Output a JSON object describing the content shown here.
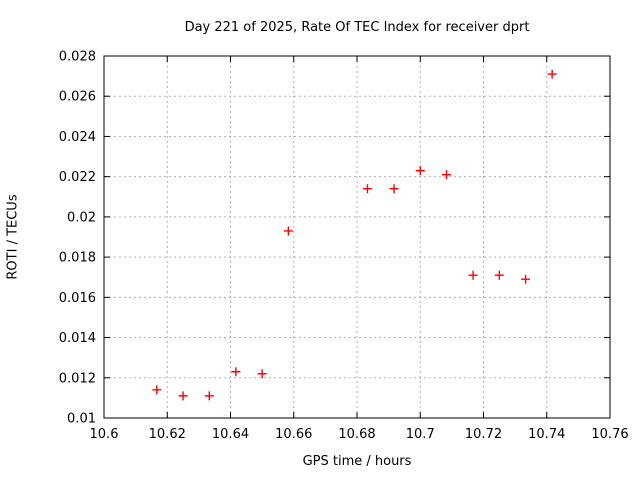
{
  "chart_data": {
    "type": "scatter",
    "title": "Day 221 of 2025, Rate Of TEC Index for receiver dprt",
    "xlabel": "GPS time / hours",
    "ylabel": "ROTI / TECUs",
    "xlim": [
      10.6,
      10.76
    ],
    "ylim": [
      0.01,
      0.028
    ],
    "xticks": {
      "values": [
        10.6,
        10.62,
        10.64,
        10.66,
        10.68,
        10.7,
        10.72,
        10.74,
        10.76
      ],
      "labels": [
        "10.6",
        "10.62",
        "10.64",
        "10.66",
        "10.68",
        "10.7",
        "10.72",
        "10.74",
        "10.76"
      ]
    },
    "yticks": {
      "values": [
        0.01,
        0.012,
        0.014,
        0.016,
        0.018,
        0.02,
        0.022,
        0.024,
        0.026,
        0.028
      ],
      "labels": [
        "0.01",
        "0.012",
        "0.014",
        "0.016",
        "0.018",
        "0.02",
        "0.022",
        "0.024",
        "0.026",
        "0.028"
      ]
    },
    "grid": "dashed-major-both-axes",
    "legend": "none",
    "marker": {
      "shape": "plus",
      "size": 9
    },
    "points": [
      [
        10.6167,
        0.0114
      ],
      [
        10.625,
        0.0111
      ],
      [
        10.6333,
        0.0111
      ],
      [
        10.6417,
        0.0123
      ],
      [
        10.65,
        0.0122
      ],
      [
        10.6583,
        0.0193
      ],
      [
        10.6833,
        0.0214
      ],
      [
        10.6917,
        0.0214
      ],
      [
        10.7,
        0.0223
      ],
      [
        10.7083,
        0.0221
      ],
      [
        10.7167,
        0.0171
      ],
      [
        10.725,
        0.0171
      ],
      [
        10.7333,
        0.0169
      ],
      [
        10.7417,
        0.0271
      ]
    ]
  },
  "colors": {
    "background": "#ffffff",
    "frame": "#000000",
    "grid": "#b0b0b0",
    "marker": "#ff0000",
    "text": "#000000"
  }
}
